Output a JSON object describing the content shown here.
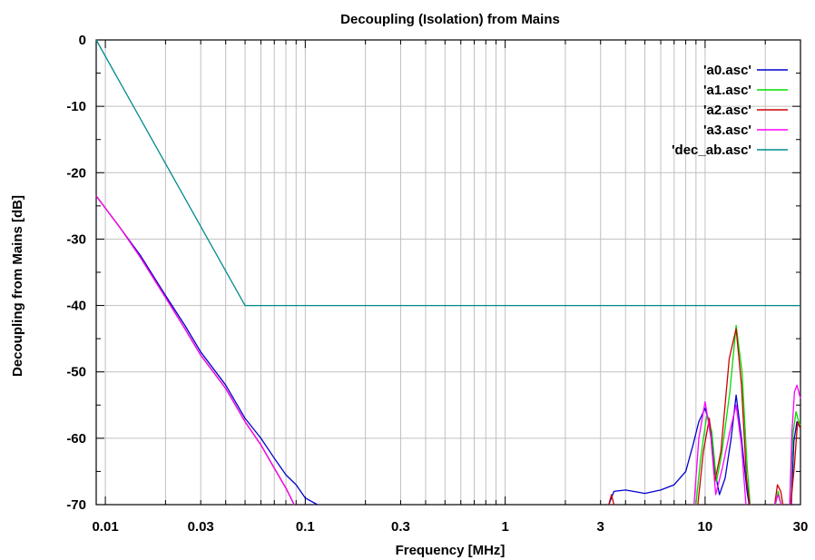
{
  "chart_data": {
    "type": "line",
    "title": "Decoupling (Isolation) from Mains",
    "xlabel": "Frequency [MHz]",
    "ylabel": "Decoupling from Mains [dB]",
    "x_scale": "log",
    "xlim": [
      0.009,
      30
    ],
    "ylim": [
      -70,
      0
    ],
    "grid": true,
    "legend_position": "top-right",
    "x_ticks": [
      {
        "value": 0.01,
        "label": "0.01"
      },
      {
        "value": 0.03,
        "label": "0.03"
      },
      {
        "value": 0.1,
        "label": "0.1"
      },
      {
        "value": 0.3,
        "label": "0.3"
      },
      {
        "value": 1,
        "label": "1"
      },
      {
        "value": 3,
        "label": "3"
      },
      {
        "value": 10,
        "label": "10"
      },
      {
        "value": 30,
        "label": "30"
      }
    ],
    "y_ticks": [
      {
        "value": 0,
        "label": "0"
      },
      {
        "value": -10,
        "label": "-10"
      },
      {
        "value": -20,
        "label": "-20"
      },
      {
        "value": -30,
        "label": "-30"
      },
      {
        "value": -40,
        "label": "-40"
      },
      {
        "value": -50,
        "label": "-50"
      },
      {
        "value": -60,
        "label": "-60"
      },
      {
        "value": -70,
        "label": "-70"
      }
    ],
    "series": [
      {
        "name": "'a0.asc'",
        "color": "#0000cc",
        "segments": [
          [
            [
              0.009,
              -23.5
            ],
            [
              0.012,
              -28.5
            ],
            [
              0.015,
              -32.5
            ],
            [
              0.02,
              -38.5
            ],
            [
              0.025,
              -43
            ],
            [
              0.03,
              -47
            ],
            [
              0.04,
              -52
            ],
            [
              0.05,
              -57
            ],
            [
              0.06,
              -60
            ],
            [
              0.07,
              -63
            ],
            [
              0.08,
              -65.5
            ],
            [
              0.09,
              -67
            ],
            [
              0.1,
              -69
            ],
            [
              0.115,
              -70
            ]
          ],
          [
            [
              3.3,
              -70
            ],
            [
              3.5,
              -68
            ],
            [
              4,
              -67.8
            ],
            [
              5,
              -68.3
            ],
            [
              6,
              -67.8
            ],
            [
              7,
              -67
            ],
            [
              8,
              -65
            ],
            [
              8.7,
              -61
            ],
            [
              9.3,
              -57.5
            ],
            [
              10,
              -55.5
            ],
            [
              10.6,
              -58
            ],
            [
              11.2,
              -65
            ],
            [
              11.8,
              -68.5
            ],
            [
              12.6,
              -66
            ],
            [
              13.5,
              -60
            ],
            [
              14.3,
              -53.5
            ],
            [
              15.2,
              -60
            ],
            [
              16.2,
              -68
            ],
            [
              16.6,
              -70
            ]
          ],
          [
            [
              27,
              -70
            ],
            [
              27.8,
              -60.5
            ],
            [
              28.8,
              -57.5
            ],
            [
              30,
              -58.5
            ]
          ]
        ]
      },
      {
        "name": "'a1.asc'",
        "color": "#00dd00",
        "segments": [
          [
            [
              0.009,
              -23.5
            ],
            [
              0.012,
              -28.5
            ],
            [
              0.015,
              -32.8
            ],
            [
              0.02,
              -38.8
            ],
            [
              0.025,
              -43.5
            ],
            [
              0.03,
              -47.5
            ],
            [
              0.04,
              -52.5
            ],
            [
              0.05,
              -57.5
            ],
            [
              0.06,
              -61
            ],
            [
              0.07,
              -64.5
            ],
            [
              0.08,
              -67.5
            ],
            [
              0.088,
              -70
            ]
          ],
          [
            [
              9,
              -70
            ],
            [
              9.5,
              -63
            ],
            [
              10.2,
              -56.5
            ],
            [
              10.8,
              -59
            ],
            [
              11.4,
              -66.5
            ],
            [
              12.1,
              -62.5
            ],
            [
              13.3,
              -53
            ],
            [
              14.3,
              -43
            ],
            [
              15.3,
              -50
            ],
            [
              16.2,
              -64
            ],
            [
              16.8,
              -70
            ]
          ],
          [
            [
              22.5,
              -70
            ],
            [
              23.2,
              -68
            ],
            [
              24,
              -70
            ]
          ],
          [
            [
              26.5,
              -70
            ],
            [
              27.6,
              -59
            ],
            [
              28.5,
              -56
            ],
            [
              29.4,
              -57.5
            ],
            [
              30,
              -58
            ]
          ]
        ]
      },
      {
        "name": "'a2.asc'",
        "color": "#cc0000",
        "segments": [
          [
            [
              0.009,
              -23.5
            ],
            [
              0.012,
              -28.5
            ],
            [
              0.015,
              -32.8
            ],
            [
              0.02,
              -38.8
            ],
            [
              0.025,
              -43.5
            ],
            [
              0.03,
              -47.5
            ],
            [
              0.04,
              -52.5
            ],
            [
              0.05,
              -57.5
            ],
            [
              0.06,
              -61
            ],
            [
              0.07,
              -64.5
            ],
            [
              0.08,
              -67.5
            ],
            [
              0.088,
              -70
            ]
          ],
          [
            [
              3.3,
              -70
            ],
            [
              3.4,
              -68.5
            ],
            [
              3.5,
              -70
            ]
          ],
          [
            [
              9.2,
              -70
            ],
            [
              9.8,
              -62
            ],
            [
              10.5,
              -57
            ],
            [
              11.2,
              -66.5
            ],
            [
              12,
              -62
            ],
            [
              13.2,
              -48
            ],
            [
              14.3,
              -43.5
            ],
            [
              15.2,
              -52
            ],
            [
              16.1,
              -66
            ],
            [
              16.7,
              -70
            ]
          ],
          [
            [
              22.3,
              -70
            ],
            [
              23,
              -67
            ],
            [
              23.9,
              -68
            ],
            [
              24.5,
              -70
            ]
          ],
          [
            [
              26.8,
              -70
            ],
            [
              28,
              -64
            ],
            [
              29,
              -57.5
            ],
            [
              30,
              -58.5
            ]
          ]
        ]
      },
      {
        "name": "'a3.asc'",
        "color": "#ff00ff",
        "segments": [
          [
            [
              0.009,
              -23.5
            ],
            [
              0.012,
              -28.5
            ],
            [
              0.015,
              -32.8
            ],
            [
              0.02,
              -38.8
            ],
            [
              0.025,
              -43.5
            ],
            [
              0.03,
              -47.5
            ],
            [
              0.04,
              -52.5
            ],
            [
              0.05,
              -57.5
            ],
            [
              0.06,
              -61
            ],
            [
              0.07,
              -64.5
            ],
            [
              0.08,
              -67.5
            ],
            [
              0.088,
              -70
            ]
          ],
          [
            [
              8.8,
              -70
            ],
            [
              9.3,
              -60
            ],
            [
              10,
              -54.5
            ],
            [
              10.7,
              -60
            ],
            [
              11.3,
              -68.5
            ],
            [
              12.2,
              -64.5
            ],
            [
              13.3,
              -59
            ],
            [
              14.3,
              -55
            ],
            [
              15.2,
              -61
            ],
            [
              16,
              -70
            ]
          ],
          [
            [
              22.3,
              -70
            ],
            [
              23.2,
              -68.5
            ],
            [
              24,
              -70
            ]
          ],
          [
            [
              26.5,
              -70
            ],
            [
              27.2,
              -59
            ],
            [
              28,
              -53
            ],
            [
              28.8,
              -52
            ],
            [
              30,
              -54
            ]
          ]
        ]
      },
      {
        "name": "'dec_ab.asc'",
        "color": "#008b8b",
        "segments": [
          [
            [
              0.009,
              0
            ],
            [
              0.05,
              -40
            ],
            [
              30,
              -40
            ]
          ]
        ]
      }
    ]
  }
}
